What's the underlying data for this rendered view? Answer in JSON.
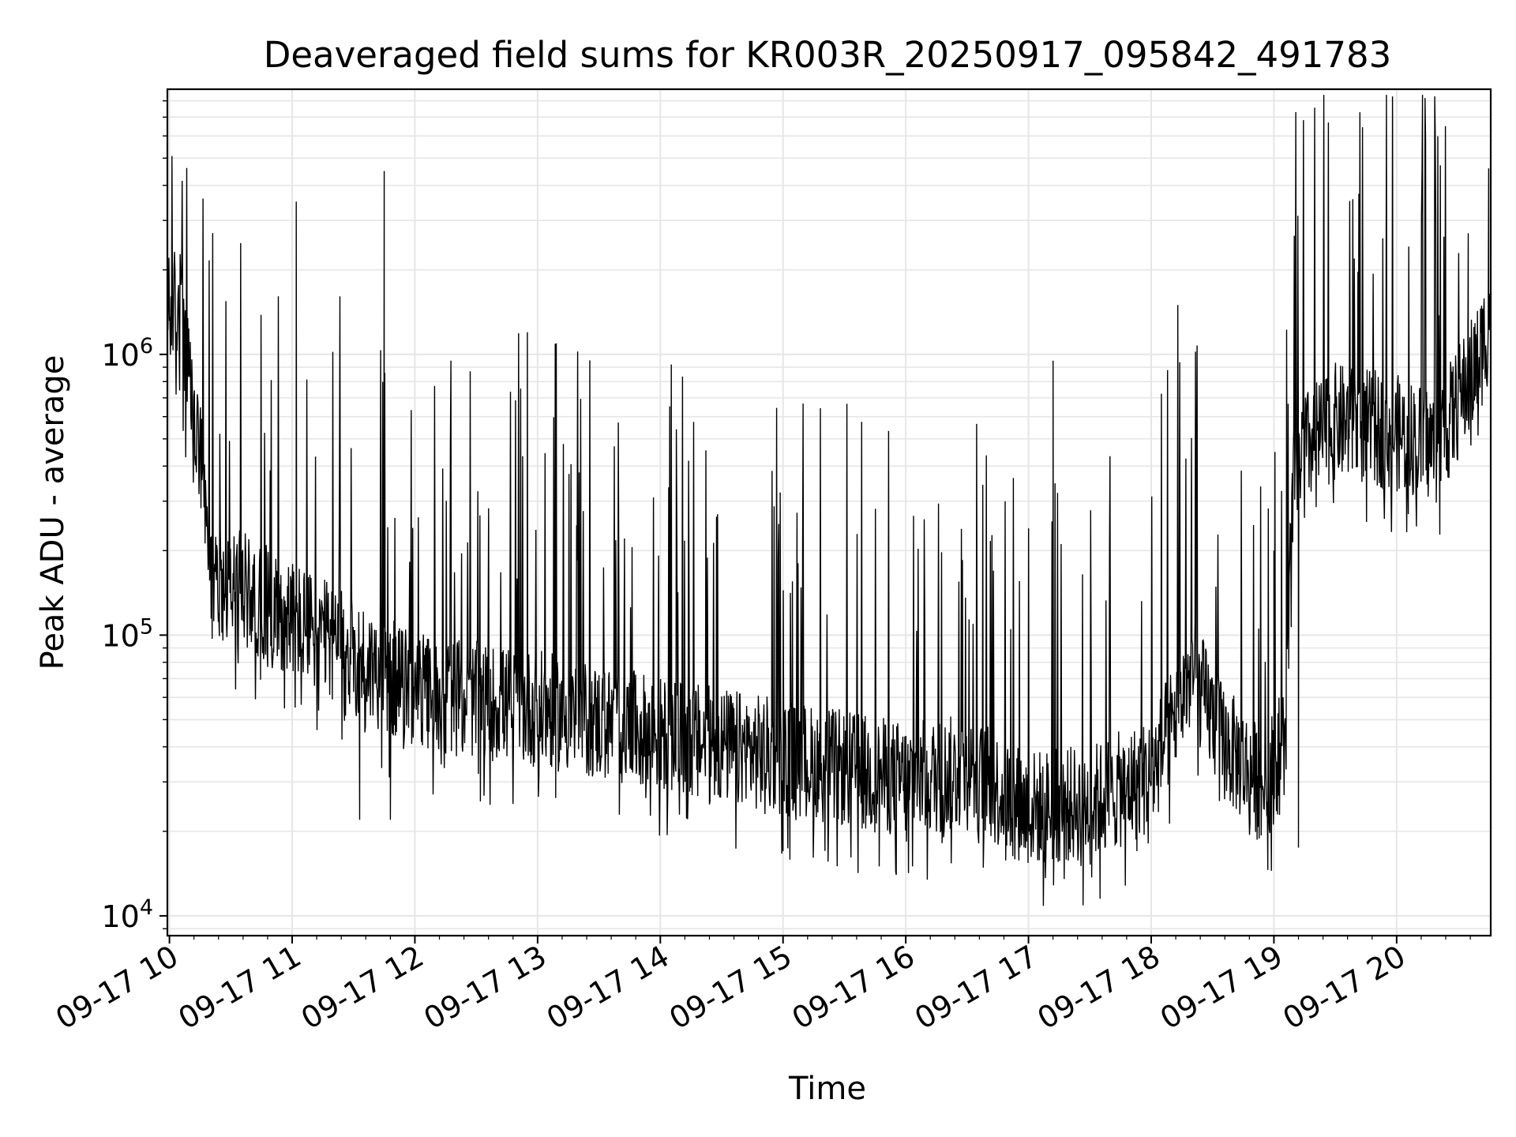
{
  "chart_data": {
    "type": "line",
    "title": "Deaveraged field sums for KR003R_20250917_095842_491783",
    "xlabel": "Time",
    "ylabel": "Peak ADU - average",
    "x_scale": "time",
    "y_scale": "log",
    "xlim": [
      "2025-09-17T09:59",
      "2025-09-17T20:46"
    ],
    "ylim": [
      8500,
      8800000
    ],
    "grid": true,
    "legend": "none",
    "line_color": "#000000",
    "grid_color": "#e6e6e6",
    "x_ticks": [
      {
        "value": "2025-09-17T10:00",
        "label": "09-17 10"
      },
      {
        "value": "2025-09-17T11:00",
        "label": "09-17 11"
      },
      {
        "value": "2025-09-17T12:00",
        "label": "09-17 12"
      },
      {
        "value": "2025-09-17T13:00",
        "label": "09-17 13"
      },
      {
        "value": "2025-09-17T14:00",
        "label": "09-17 14"
      },
      {
        "value": "2025-09-17T15:00",
        "label": "09-17 15"
      },
      {
        "value": "2025-09-17T16:00",
        "label": "09-17 16"
      },
      {
        "value": "2025-09-17T17:00",
        "label": "09-17 17"
      },
      {
        "value": "2025-09-17T18:00",
        "label": "09-17 18"
      },
      {
        "value": "2025-09-17T19:00",
        "label": "09-17 19"
      },
      {
        "value": "2025-09-17T20:00",
        "label": "09-17 20"
      }
    ],
    "y_ticks": [
      {
        "value": 10000,
        "base": "10",
        "exp": "4"
      },
      {
        "value": 100000,
        "base": "10",
        "exp": "5"
      },
      {
        "value": 1000000,
        "base": "10",
        "exp": "6"
      }
    ],
    "baseline": [
      {
        "x": "2025-09-17T09:59",
        "y": 1300000
      },
      {
        "x": "2025-09-17T10:05",
        "y": 1500000
      },
      {
        "x": "2025-09-17T10:10",
        "y": 700000
      },
      {
        "x": "2025-09-17T10:15",
        "y": 400000
      },
      {
        "x": "2025-09-17T10:20",
        "y": 150000
      },
      {
        "x": "2025-09-17T10:35",
        "y": 140000
      },
      {
        "x": "2025-09-17T11:00",
        "y": 110000
      },
      {
        "x": "2025-09-17T11:30",
        "y": 80000
      },
      {
        "x": "2025-09-17T12:00",
        "y": 60000
      },
      {
        "x": "2025-09-17T13:00",
        "y": 52000
      },
      {
        "x": "2025-09-17T14:00",
        "y": 42000
      },
      {
        "x": "2025-09-17T15:00",
        "y": 35000
      },
      {
        "x": "2025-09-17T16:00",
        "y": 29000
      },
      {
        "x": "2025-09-17T16:30",
        "y": 31000
      },
      {
        "x": "2025-09-17T17:00",
        "y": 23000
      },
      {
        "x": "2025-09-17T17:30",
        "y": 24000
      },
      {
        "x": "2025-09-17T18:00",
        "y": 30000
      },
      {
        "x": "2025-09-17T18:20",
        "y": 70000
      },
      {
        "x": "2025-09-17T18:35",
        "y": 40000
      },
      {
        "x": "2025-09-17T18:55",
        "y": 27000
      },
      {
        "x": "2025-09-17T19:05",
        "y": 40000
      },
      {
        "x": "2025-09-17T19:10",
        "y": 400000
      },
      {
        "x": "2025-09-17T19:30",
        "y": 550000
      },
      {
        "x": "2025-09-17T20:00",
        "y": 500000
      },
      {
        "x": "2025-09-17T20:20",
        "y": 450000
      },
      {
        "x": "2025-09-17T20:40",
        "y": 900000
      },
      {
        "x": "2025-09-17T20:46",
        "y": 1300000
      }
    ],
    "spikes": [
      {
        "x": "2025-09-17T11:02",
        "y": 3500000
      },
      {
        "x": "2025-09-17T11:45",
        "y": 4500000
      },
      {
        "x": "2025-09-17T12:55",
        "y": 1200000
      },
      {
        "x": "2025-09-17T17:12",
        "y": 950000
      },
      {
        "x": "2025-09-17T18:13",
        "y": 1500000
      },
      {
        "x": "2025-09-17T19:00",
        "y": 200000
      },
      {
        "x": "2025-09-17T19:58",
        "y": 7000000
      },
      {
        "x": "2025-09-17T20:35",
        "y": 2700000
      },
      {
        "x": "2025-09-17T20:45",
        "y": 4600000
      }
    ],
    "dips": [
      {
        "x": "2025-09-17T11:33",
        "y": 22000
      },
      {
        "x": "2025-09-17T11:48",
        "y": 22000
      },
      {
        "x": "2025-09-17T15:00",
        "y": 17000
      },
      {
        "x": "2025-09-17T15:47",
        "y": 15000
      },
      {
        "x": "2025-09-17T17:35",
        "y": 11500
      },
      {
        "x": "2025-09-17T17:53",
        "y": 17000
      },
      {
        "x": "2025-09-17T19:12",
        "y": 17500
      }
    ]
  }
}
